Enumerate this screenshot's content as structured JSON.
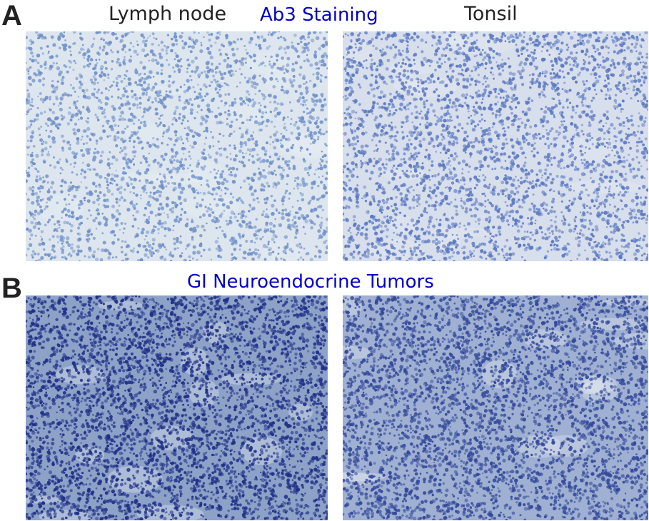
{
  "figure": {
    "panels": [
      {
        "letter": "A",
        "heading": "Ab3 Staining",
        "images": [
          {
            "label": "Lymph node",
            "stain_level": "weak",
            "background": "#dde6ee",
            "cell_color": "#6f8fc8",
            "cell_density": 0.55
          },
          {
            "label": "Tonsil",
            "stain_level": "weak",
            "background": "#d7deec",
            "cell_color": "#5a78c0",
            "cell_density": 0.65
          }
        ]
      },
      {
        "letter": "B",
        "heading": "GI Neuroendocrine Tumors",
        "images": [
          {
            "label": "",
            "stain_level": "strong",
            "background": "#8ea2c8",
            "cell_color": "#1f2f86",
            "cell_density": 0.9
          },
          {
            "label": "",
            "stain_level": "strong",
            "background": "#9fb0d2",
            "cell_color": "#33489a",
            "cell_density": 0.85
          }
        ]
      }
    ]
  }
}
